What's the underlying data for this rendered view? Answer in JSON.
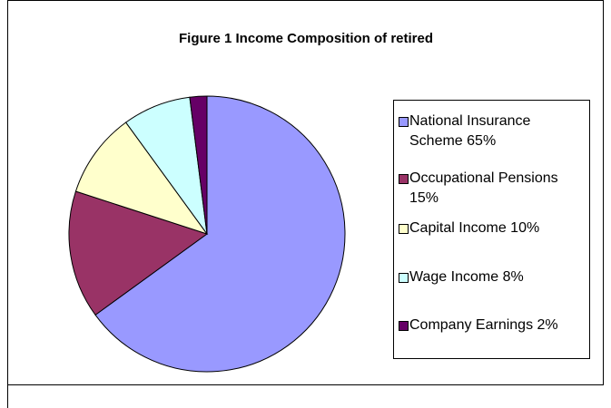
{
  "chart_data": {
    "type": "pie",
    "title": "Figure 1 Income Composition  of retired",
    "categories": [
      "National Insurance Scheme",
      "Occupational Pensions",
      "Capital Income",
      "Wage Income",
      "Company Earnings"
    ],
    "values": [
      65,
      15,
      10,
      8,
      2
    ],
    "value_labels": [
      "65%",
      "15%",
      "10%",
      "8%",
      "2%"
    ],
    "colors": [
      "#9999ff",
      "#993366",
      "#ffffcc",
      "#ccffff",
      "#660066"
    ],
    "legend": "right"
  }
}
